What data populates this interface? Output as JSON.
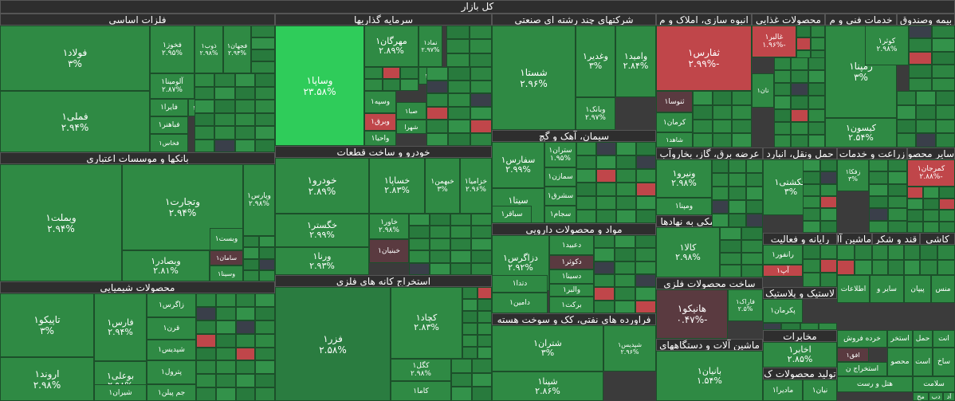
{
  "title": "کل بازار",
  "colors": {
    "up": "#2f8a44",
    "upBright": "#2fcc5a",
    "down": "#c0464a",
    "downDark": "#5a3a40",
    "neutral": "#3a3f4a"
  },
  "sectors": [
    {
      "name": "فلزات اساسی"
    },
    {
      "name": "سرمایه گذاریها"
    },
    {
      "name": "شرکتهای چند رشته ای صنعتی"
    },
    {
      "name": "انبوه سازی، املاک و م"
    },
    {
      "name": "محصولات غذایی"
    },
    {
      "name": "خدمات فنی و م"
    },
    {
      "name": "بیمه وصندوق"
    },
    {
      "name": "بانکها و موسسات اعتباری"
    },
    {
      "name": "خودرو و ساخت قطعات"
    },
    {
      "name": "سیمان، آهک و گچ"
    },
    {
      "name": "عرضه برق، گاز، بخاروآب"
    },
    {
      "name": "حمل ونقل، انبارد"
    },
    {
      "name": "زراعت و خدمات"
    },
    {
      "name": "سایر محصو"
    },
    {
      "name": "مواد و محصولات دارویی"
    },
    {
      "name": "فعالیتهای کمکی به نهادها"
    },
    {
      "name": "رایانه و فعالیت"
    },
    {
      "name": "محصولات شیمیایی"
    },
    {
      "name": "استخراج کانه های فلزی"
    },
    {
      "name": "ساخت محصولات فلزی"
    },
    {
      "name": "فراورده های نفتی، کک و سوخت هسته"
    },
    {
      "name": "لاستیک و پلاستیک"
    },
    {
      "name": "ماشین آلات و دستگاههای"
    },
    {
      "name": "مخابرات"
    },
    {
      "name": "تولید محصولات ک"
    },
    {
      "name": "قند و شکر"
    },
    {
      "name": "ماشین آل"
    },
    {
      "name": "کاشی"
    }
  ],
  "stocks": [
    {
      "name": "فولاد۱",
      "value": "۳%"
    },
    {
      "name": "فخوز۱",
      "value": "۲.۹۵%"
    },
    {
      "name": "ذوب۱",
      "value": "۲.۹۸%"
    },
    {
      "name": "فجهان۱",
      "value": "۲.۹۴%"
    },
    {
      "name": "فملی۱",
      "value": "۲.۹۴%"
    },
    {
      "name": "آلومینا۱",
      "value": "۲.۸۷%"
    },
    {
      "name": "فایرا۱",
      "value": ""
    },
    {
      "name": "کاوه۱",
      "value": ""
    },
    {
      "name": "فباهنر۱",
      "value": ""
    },
    {
      "name": "فخاس۱",
      "value": ""
    },
    {
      "name": "وساپا۱",
      "value": "۲۳.۵۸%"
    },
    {
      "name": "مهرگان۱",
      "value": "۲.۸۹%"
    },
    {
      "name": "نماد۱",
      "value": "۲.۹۷%"
    },
    {
      "name": "وانی۱",
      "value": ""
    },
    {
      "name": "وسپه۱",
      "value": ""
    },
    {
      "name": "صبا۱",
      "value": ""
    },
    {
      "name": "وبرق۱",
      "value": ""
    },
    {
      "name": "شهرا",
      "value": ""
    },
    {
      "name": "واحیا۱",
      "value": ""
    },
    {
      "name": "شستا۱",
      "value": "۲.۹۶%"
    },
    {
      "name": "وغدیر۱",
      "value": "۳%"
    },
    {
      "name": "وامید۱",
      "value": "۲.۸۴%"
    },
    {
      "name": "وبانک۱",
      "value": "۲.۹۷%"
    },
    {
      "name": "ثفارس۱",
      "value": "-۲.۹۹%"
    },
    {
      "name": "غالبر۱",
      "value": "-۱.۹۶%"
    },
    {
      "name": "رمپنا۱",
      "value": "۳%"
    },
    {
      "name": "کوثر۱",
      "value": "۲.۹۸%"
    },
    {
      "name": "کیسون۱",
      "value": "۲.۵۴%"
    },
    {
      "name": "ثنوسا۱",
      "value": ""
    },
    {
      "name": "کرمان۱",
      "value": ""
    },
    {
      "name": "شاهد۱",
      "value": ""
    },
    {
      "name": "نان۱",
      "value": ""
    },
    {
      "name": "وتجارت۱",
      "value": "۲.۹۴%"
    },
    {
      "name": "وپارس۱",
      "value": "۲.۹۸%"
    },
    {
      "name": "وبملت۱",
      "value": "۲.۹۴%"
    },
    {
      "name": "وبصادر۱",
      "value": "۲.۸۱%"
    },
    {
      "name": "وبست۱",
      "value": ""
    },
    {
      "name": "سامان۱",
      "value": ""
    },
    {
      "name": "وسینا۱",
      "value": ""
    },
    {
      "name": "خودرو۱",
      "value": "۲.۸۹%"
    },
    {
      "name": "خساپا۱",
      "value": "۲.۸۳%"
    },
    {
      "name": "خبهمن۱",
      "value": "۳%"
    },
    {
      "name": "خزامیا۱",
      "value": "۲.۹۶%"
    },
    {
      "name": "خگستر۱",
      "value": "۲.۹۹%"
    },
    {
      "name": "خاور۱",
      "value": "۲.۹۸%"
    },
    {
      "name": "ورنا۱",
      "value": "۲.۹۳%"
    },
    {
      "name": "خبنیان۱",
      "value": ""
    },
    {
      "name": "سفارس۱",
      "value": "۲.۹۹%"
    },
    {
      "name": "ستران۱",
      "value": "۱.۹۵%"
    },
    {
      "name": "سیتا۱",
      "value": "۲.۹۹%"
    },
    {
      "name": "سمازن۱",
      "value": ""
    },
    {
      "name": "سشرق۱",
      "value": ""
    },
    {
      "name": "سباقر۱",
      "value": ""
    },
    {
      "name": "سجام۱",
      "value": ""
    },
    {
      "name": "ونیرو۱",
      "value": "۲.۹۸%"
    },
    {
      "name": "ومپنا۱",
      "value": ""
    },
    {
      "name": "حکشتی۱",
      "value": "۳%"
    },
    {
      "name": "زفکا۱",
      "value": "۳%"
    },
    {
      "name": "کمرجان۱",
      "value": "-۲.۸۸%"
    },
    {
      "name": "دزاگرس۱",
      "value": "۲.۹۲%"
    },
    {
      "name": "دعبید۱",
      "value": ""
    },
    {
      "name": "دکوثر۱",
      "value": ""
    },
    {
      "name": "دتدا۱",
      "value": ""
    },
    {
      "name": "دسینا۱",
      "value": ""
    },
    {
      "name": "والبر۱",
      "value": ""
    },
    {
      "name": "دامین۱",
      "value": ""
    },
    {
      "name": "برکت۱",
      "value": ""
    },
    {
      "name": "کالا۱",
      "value": "۲.۹۸%"
    },
    {
      "name": "رانفور۱",
      "value": ""
    },
    {
      "name": "آپ۱",
      "value": ""
    },
    {
      "name": "تاپیکو۱",
      "value": "۳%"
    },
    {
      "name": "فارس۱",
      "value": "۲.۹۴%"
    },
    {
      "name": "زاگرس۱",
      "value": ""
    },
    {
      "name": "قرن۱",
      "value": ""
    },
    {
      "name": "شپدیس۱",
      "value": ""
    },
    {
      "name": "اروند۱",
      "value": "۲.۹۸%"
    },
    {
      "name": "بوعلی۱",
      "value": "۲.۹۸%"
    },
    {
      "name": "پترول۱",
      "value": ""
    },
    {
      "name": "شیران۱",
      "value": ""
    },
    {
      "name": "جم پیلن۱",
      "value": ""
    },
    {
      "name": "فزر۱",
      "value": "۲.۵۸%"
    },
    {
      "name": "کچاد۱",
      "value": "۲.۸۳%"
    },
    {
      "name": "کگل۱",
      "value": "۲.۹۸%"
    },
    {
      "name": "کاما۱",
      "value": ""
    },
    {
      "name": "هانیکو۱",
      "value": "-۰.۴۷%"
    },
    {
      "name": "فاراک۱",
      "value": "۲.۵%"
    },
    {
      "name": "شتران۱",
      "value": "۳%"
    },
    {
      "name": "شپنا۱",
      "value": "۲.۸۶%"
    },
    {
      "name": "شپدیس۱",
      "value": "۲.۹۶%"
    },
    {
      "name": "بانیان۱",
      "value": "۱.۵۴%"
    },
    {
      "name": "پکرمان۱",
      "value": ""
    },
    {
      "name": "اخابر۱",
      "value": "۲.۸۵%"
    },
    {
      "name": "نیان۱",
      "value": ""
    },
    {
      "name": "مادیرا۱",
      "value": ""
    },
    {
      "name": "منس",
      "value": ""
    },
    {
      "name": "پیپان",
      "value": ""
    },
    {
      "name": "سایر و",
      "value": ""
    },
    {
      "name": "اطلاعات",
      "value": ""
    },
    {
      "name": "انت",
      "value": ""
    },
    {
      "name": "حمل",
      "value": ""
    },
    {
      "name": "استخر",
      "value": ""
    },
    {
      "name": "خرده فروش",
      "value": ""
    },
    {
      "name": "افق۱",
      "value": ""
    },
    {
      "name": "ساخ",
      "value": ""
    },
    {
      "name": "است",
      "value": ""
    },
    {
      "name": "محصو",
      "value": ""
    },
    {
      "name": "استخراج ن",
      "value": ""
    },
    {
      "name": "سلامت",
      "value": ""
    },
    {
      "name": "هتل و رست",
      "value": ""
    },
    {
      "name": "مح",
      "value": ""
    },
    {
      "name": "دب",
      "value": ""
    },
    {
      "name": "آد",
      "value": ""
    }
  ]
}
